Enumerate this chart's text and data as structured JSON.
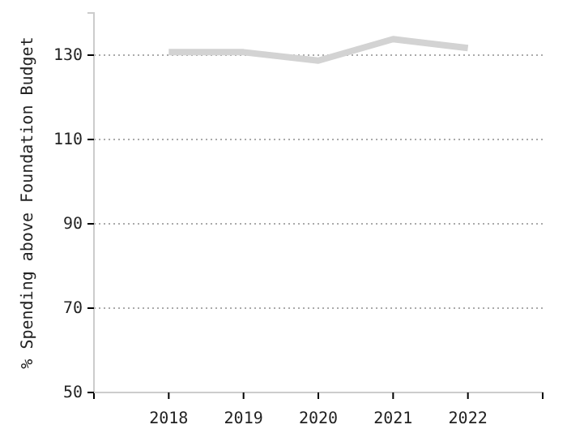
{
  "chart_data": {
    "type": "line",
    "ylabel": "% Spending above Foundation Budget",
    "x": [
      2018,
      2019,
      2020,
      2021,
      2022
    ],
    "series": [
      {
        "color": "#d3d3d3",
        "values": [
          130.7,
          130.7,
          128.7,
          133.8,
          131.7
        ]
      }
    ],
    "xlim": [
      2017,
      2023
    ],
    "xticks": [
      {
        "value": 2017,
        "label": null
      },
      2018,
      2019,
      2020,
      2021,
      2022,
      {
        "value": 2023,
        "label": null
      }
    ],
    "ylim": [
      50,
      140
    ],
    "yticks": [
      50,
      70,
      90,
      110,
      130
    ],
    "grid": "y",
    "marker": "none",
    "line_style": "solid"
  }
}
